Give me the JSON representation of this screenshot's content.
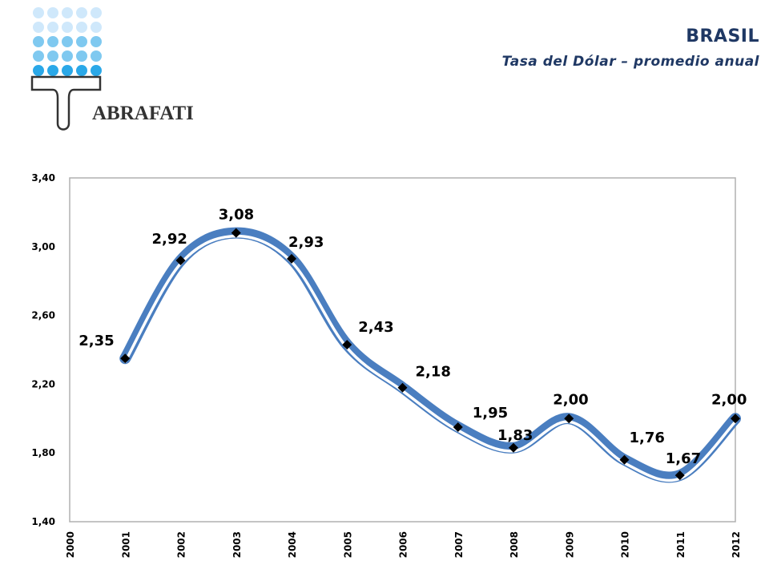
{
  "header": {
    "title": "BRASIL",
    "subtitle": "Tasa del Dólar – promedio anual",
    "logo_text": "ABRAFATI"
  },
  "colors": {
    "title": "#1f3864",
    "line": "#4a7ec0",
    "marker": "#000000",
    "dots_light": "#cfe8fb",
    "dots_mid": "#7fc9f0",
    "dots_dark": "#2aa8e8",
    "logo_brush": "#333333"
  },
  "chart_data": {
    "type": "line",
    "title": "",
    "xlabel": "",
    "ylabel": "",
    "x_ticks": [
      "2000",
      "2001",
      "2002",
      "2003",
      "2004",
      "2005",
      "2006",
      "2007",
      "2008",
      "2009",
      "2010",
      "2011",
      "2012"
    ],
    "y_ticks": [
      "1,40",
      "1,80",
      "2,20",
      "2,60",
      "3,00",
      "3,40"
    ],
    "ylim": [
      1.4,
      3.4
    ],
    "xlim": [
      2000,
      2012
    ],
    "grid": false,
    "legend": "none",
    "series": [
      {
        "x": [
          2001,
          2002,
          2003,
          2004,
          2005,
          2006,
          2007,
          2008,
          2009,
          2010,
          2011,
          2012
        ],
        "values": [
          2.35,
          2.92,
          3.08,
          2.93,
          2.43,
          2.18,
          1.95,
          1.83,
          2.0,
          1.76,
          1.67,
          2.0
        ],
        "labels": [
          "2,35",
          "2,92",
          "3,08",
          "2,93",
          "2,43",
          "2,18",
          "1,95",
          "1,83",
          "2,00",
          "1,76",
          "1,67",
          "2,00"
        ]
      }
    ]
  }
}
